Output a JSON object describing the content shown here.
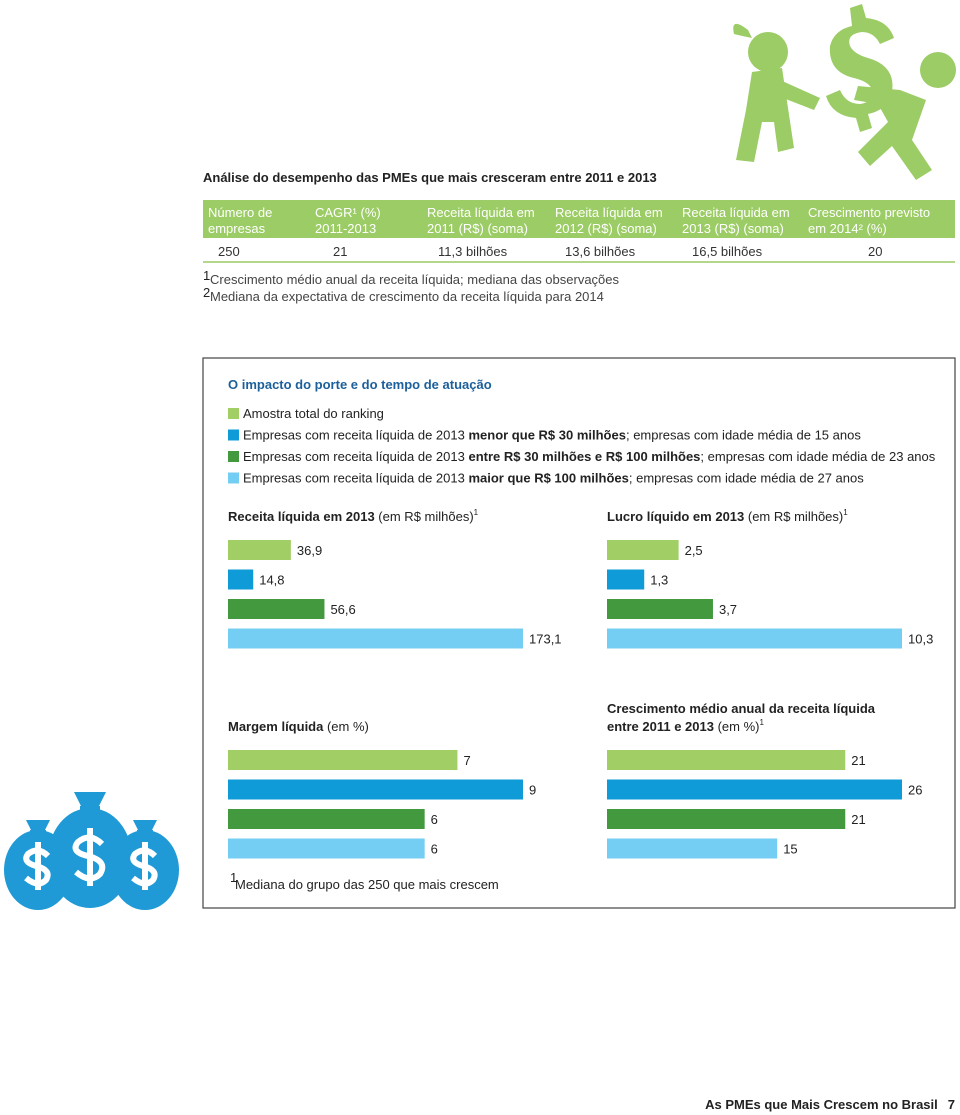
{
  "header": {
    "title": "Análise do desempenho das PMEs que mais cresceram entre 2011 e 2013"
  },
  "table": {
    "columns": [
      [
        "Número de",
        "empresas"
      ],
      [
        "CAGR¹ (%)",
        "2011-2013"
      ],
      [
        "Receita líquida em",
        "2011 (R$) (soma)"
      ],
      [
        "Receita líquida em",
        "2012 (R$) (soma)"
      ],
      [
        "Receita líquida em",
        "2013 (R$) (soma)"
      ],
      [
        "Crescimento previsto",
        "em 2014² (%)"
      ]
    ],
    "rows": [
      [
        "250",
        "21",
        "11,3 bilhões",
        "13,6 bilhões",
        "16,5 bilhões",
        "20"
      ]
    ]
  },
  "footnotes": [
    {
      "mark": "1",
      "text": "Crescimento médio anual da receita líquida; mediana das observações"
    },
    {
      "mark": "2",
      "text": "Mediana da expectativa de crescimento da receita líquida para 2014"
    }
  ],
  "panel": {
    "title": "O impacto do porte e do tempo de atuação",
    "legend": [
      {
        "color": "#a1cf66",
        "parts": [
          "Amostra total do ranking"
        ]
      },
      {
        "color": "#0f9bd7",
        "parts": [
          "Empresas com receita líquida de 2013 ",
          "menor que R$ 30 milhões",
          "; empresas com idade média de 15 anos"
        ]
      },
      {
        "color": "#439a3e",
        "parts": [
          "Empresas com receita líquida de 2013 ",
          "entre R$ 30 milhões e R$ 100 milhões",
          "; empresas com idade média de 23 anos"
        ]
      },
      {
        "color": "#74cdf2",
        "parts": [
          "Empresas com receita líquida de 2013 ",
          "maior que R$ 100 milhões",
          "; empresas com idade média de 27 anos"
        ]
      }
    ],
    "footnote": {
      "mark": "1",
      "text": "Mediana do grupo das 250 que mais crescem"
    }
  },
  "chart_data": [
    {
      "type": "bar",
      "title_lines": [
        "Receita líquida em 2013"
      ],
      "unit": " (em R$ milhões)",
      "note": "1",
      "values": [
        36.9,
        14.8,
        56.6,
        173.1
      ],
      "value_labels": [
        "36,9",
        "14,8",
        "56,6",
        "173,1"
      ],
      "colors": [
        "#a1cf66",
        "#0f9bd7",
        "#439a3e",
        "#74cdf2"
      ]
    },
    {
      "type": "bar",
      "title_lines": [
        "Lucro líquido em 2013"
      ],
      "unit": " (em R$ milhões)",
      "note": "1",
      "values": [
        2.5,
        1.3,
        3.7,
        10.3
      ],
      "value_labels": [
        "2,5",
        "1,3",
        "3,7",
        "10,3"
      ],
      "colors": [
        "#a1cf66",
        "#0f9bd7",
        "#439a3e",
        "#74cdf2"
      ]
    },
    {
      "type": "bar",
      "title_lines": [
        "Margem líquida"
      ],
      "unit": " (em %)",
      "values": [
        7,
        9,
        6,
        6
      ],
      "colors": [
        "#a1cf66",
        "#0f9bd7",
        "#439a3e",
        "#74cdf2"
      ]
    },
    {
      "type": "bar",
      "title_lines": [
        "Crescimento médio anual da receita líquida",
        "entre 2011 e 2013"
      ],
      "unit": " (em %)",
      "note": "1",
      "values": [
        21,
        26,
        21,
        15
      ],
      "colors": [
        "#a1cf66",
        "#0f9bd7",
        "#439a3e",
        "#74cdf2"
      ]
    }
  ],
  "footer": {
    "title": "As PMEs que Mais Crescem no Brasil",
    "page": "7"
  }
}
